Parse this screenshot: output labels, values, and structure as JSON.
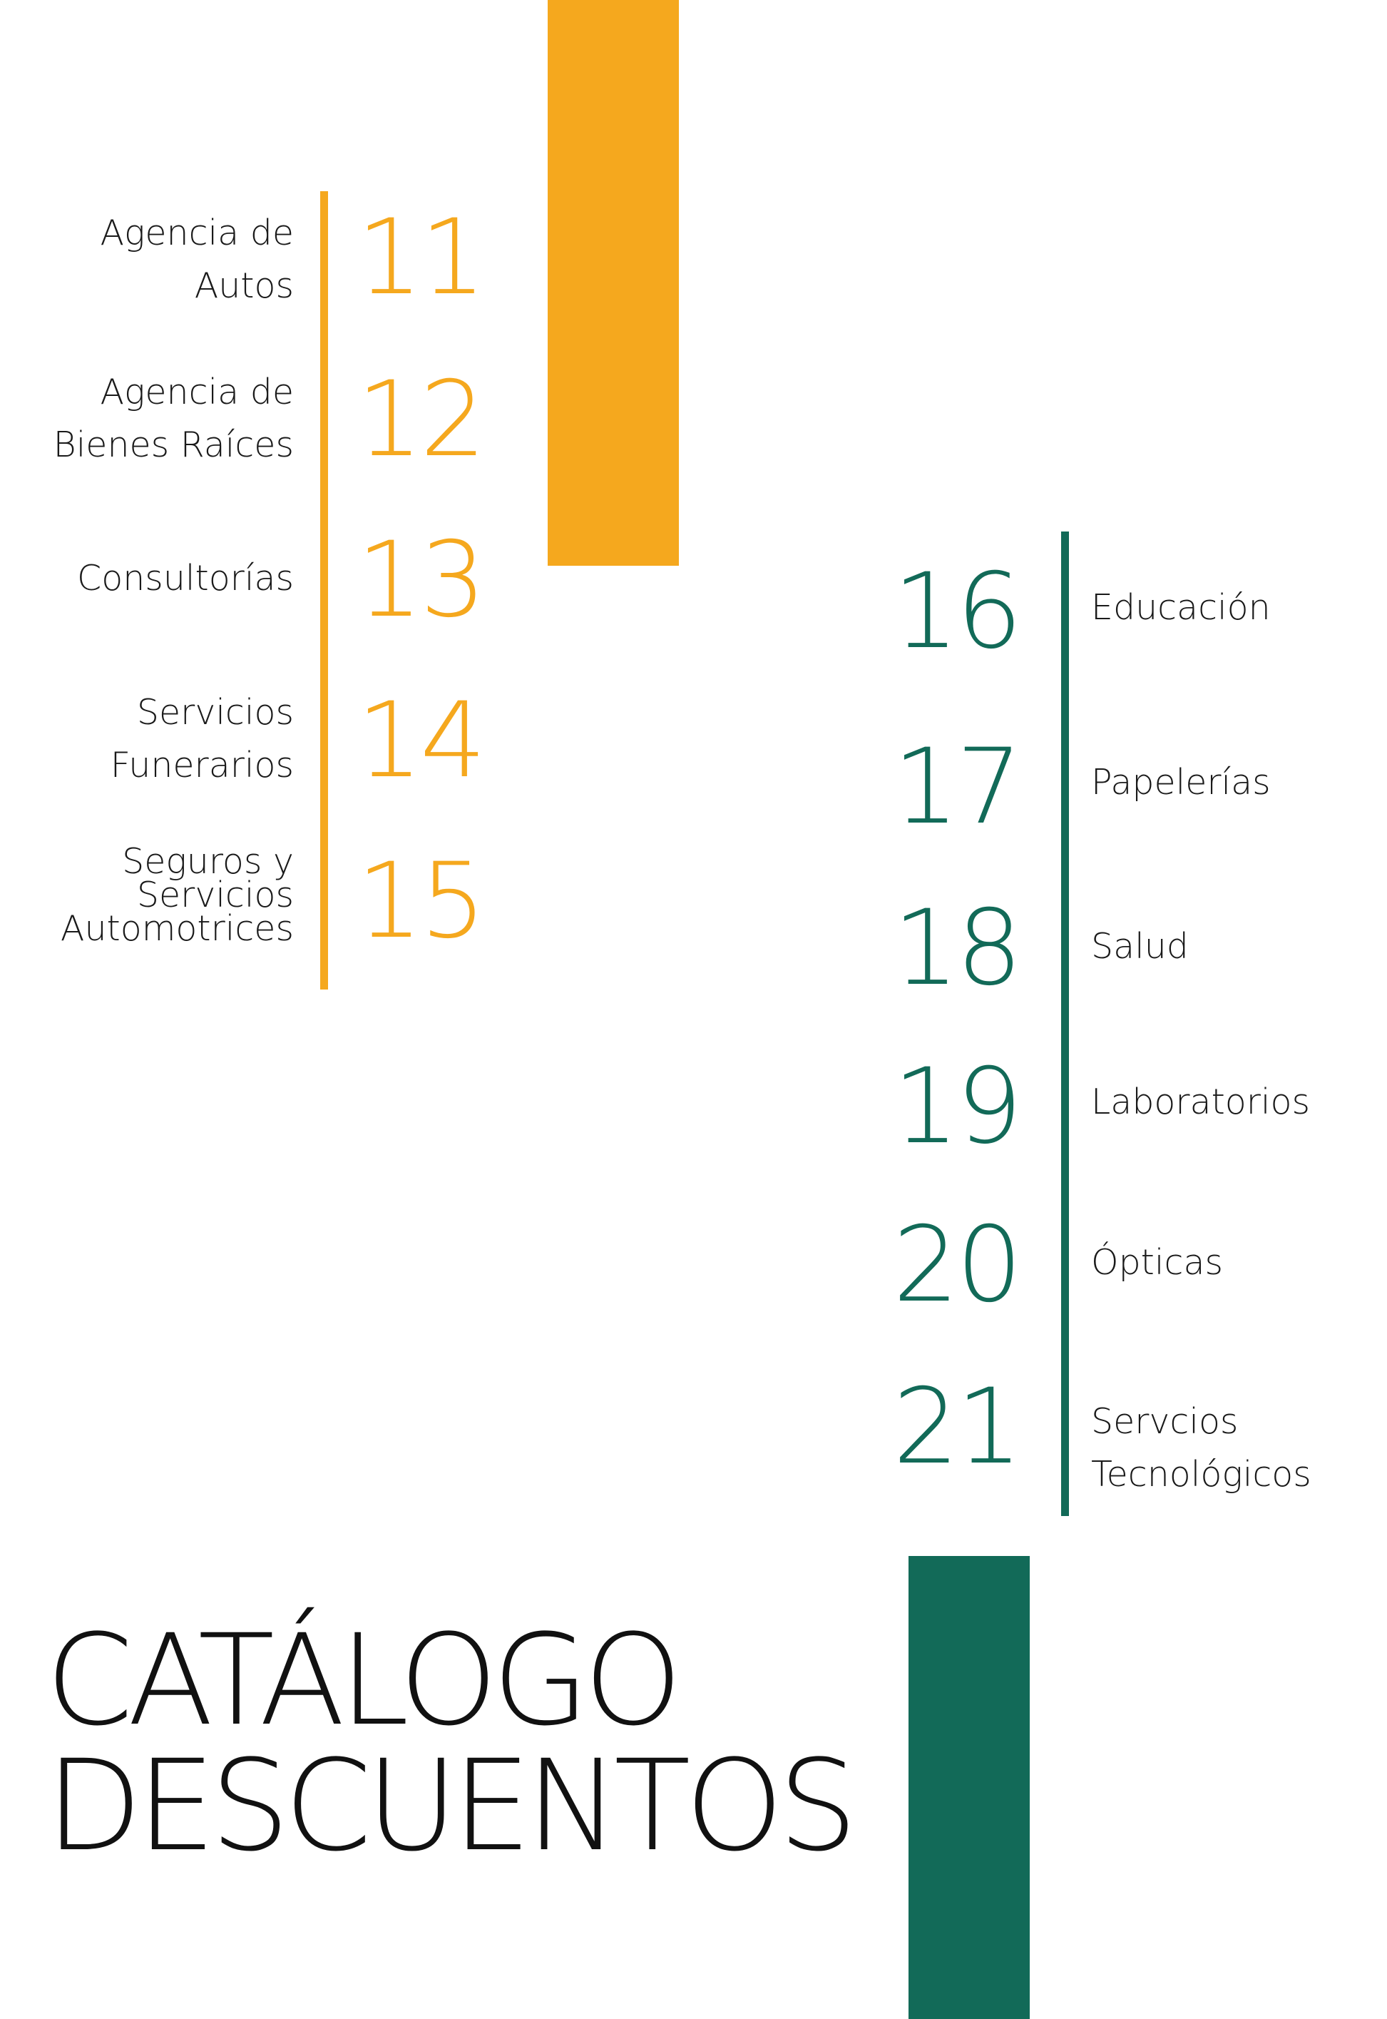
{
  "colors": {
    "orange": "#F5A81E",
    "green": "#126A58",
    "text": "#1a1a1a",
    "background": "#ffffff"
  },
  "left_index": [
    {
      "number": "11",
      "label": "Agencia de\nAutos"
    },
    {
      "number": "12",
      "label": "Agencia de\nBienes Raíces"
    },
    {
      "number": "13",
      "label": "Consultorías"
    },
    {
      "number": "14",
      "label": "Servicios\nFunerarios"
    },
    {
      "number": "15",
      "label": "Seguros y\nServicios\nAutomotrices"
    }
  ],
  "right_index": [
    {
      "number": "16",
      "label": "Educación"
    },
    {
      "number": "17",
      "label": "Papelerías"
    },
    {
      "number": "18",
      "label": "Salud"
    },
    {
      "number": "19",
      "label": "Laboratorios"
    },
    {
      "number": "20",
      "label": "Ópticas"
    },
    {
      "number": "21",
      "label": "Servcios\nTecnológicos"
    }
  ],
  "title": {
    "line1": "CATÁLOGO",
    "line2": "DESCUENTOS"
  }
}
